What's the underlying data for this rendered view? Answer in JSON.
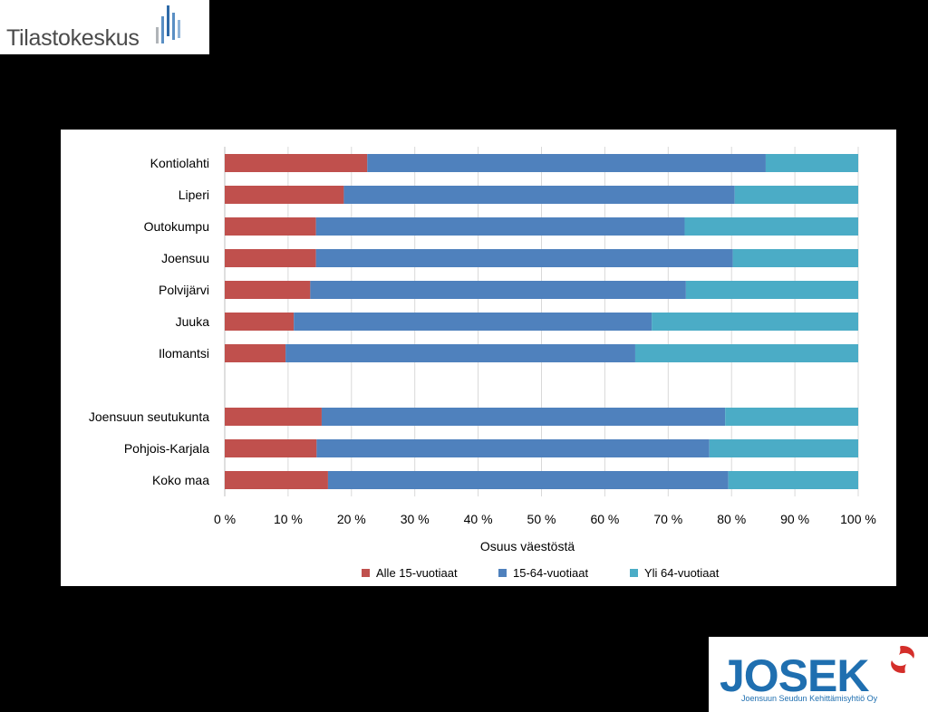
{
  "logos": {
    "tilastokeskus": "Tilastokeskus",
    "josek": "JOSEK",
    "josek_subtitle": "Joensuun Seudun Kehittämisyhtiö Oy"
  },
  "chart_data": {
    "type": "bar",
    "orientation": "horizontal",
    "stacked": "percent",
    "categories": [
      "Kontiolahti",
      "Liperi",
      "Outokumpu",
      "Joensuu",
      "Polvijärvi",
      "Juuka",
      "Ilomantsi",
      "",
      "Joensuun seutukunta",
      "Pohjois-Karjala",
      "Koko maa"
    ],
    "series": [
      {
        "name": "Alle 15-vuotiaat",
        "color": "#c0504d",
        "values": [
          22.5,
          18.8,
          14.4,
          14.4,
          13.5,
          10.9,
          9.6,
          null,
          15.3,
          14.5,
          16.3
        ]
      },
      {
        "name": "15-64-vuotiaat",
        "color": "#4f81bd",
        "values": [
          62.9,
          61.7,
          58.2,
          65.8,
          59.3,
          56.5,
          55.2,
          null,
          63.7,
          62.0,
          63.2
        ]
      },
      {
        "name": "Yli 64-vuotiaat",
        "color": "#4bacc6",
        "values": [
          14.6,
          19.5,
          27.4,
          19.8,
          27.2,
          32.6,
          35.2,
          null,
          21.0,
          23.5,
          20.5
        ]
      }
    ],
    "xlabel": "Osuus väestöstä",
    "xticks": [
      "0 %",
      "10 %",
      "20 %",
      "30 %",
      "40 %",
      "50 %",
      "60 %",
      "70 %",
      "80 %",
      "90 %",
      "100 %"
    ],
    "xlim": [
      0,
      100
    ],
    "grid": "vertical",
    "legend": "bottom"
  }
}
